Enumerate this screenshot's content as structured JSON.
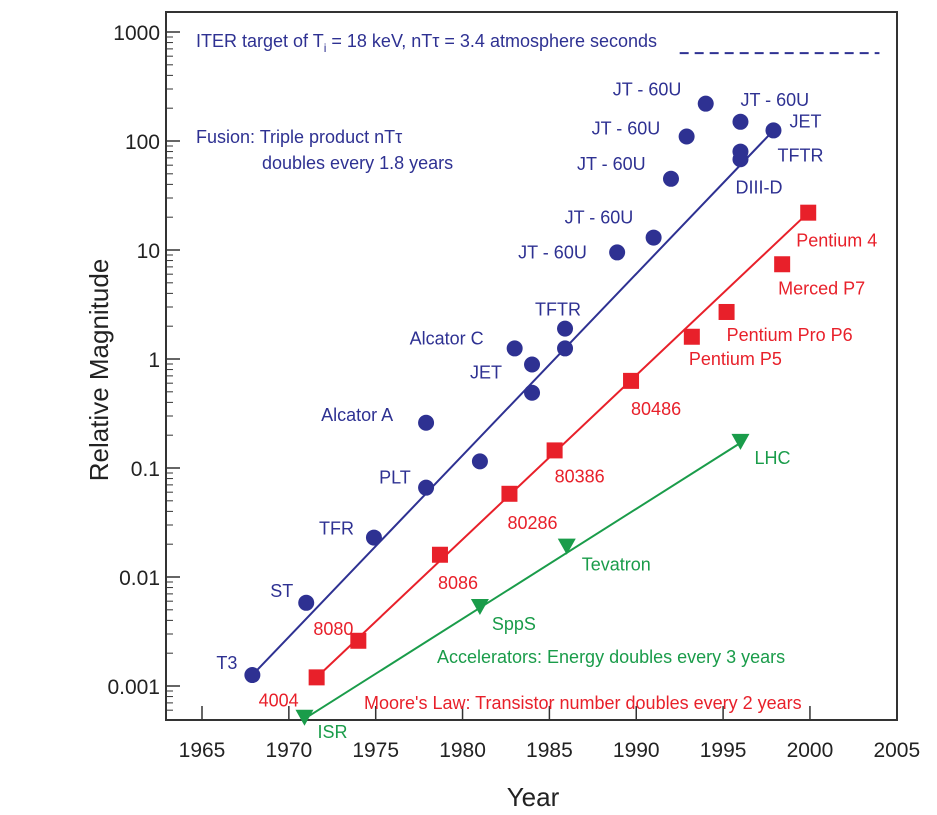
{
  "chart_data": {
    "type": "scatter",
    "title": "",
    "xlabel": "Year",
    "ylabel": "Relative Magnitude",
    "xlim": [
      1962.5,
      2005
    ],
    "ylim": [
      0.0005,
      1500
    ],
    "yscale": "log",
    "x_ticks": [
      "1965",
      "1970",
      "1975",
      "1980",
      "1985",
      "1990",
      "1995",
      "2000",
      "2005"
    ],
    "y_ticks": [
      {
        "v": 1000,
        "label": "1000"
      },
      {
        "v": 100,
        "label": "100"
      },
      {
        "v": 10,
        "label": "10"
      },
      {
        "v": 1,
        "label": "1"
      },
      {
        "v": 0.1,
        "label": "0.1"
      },
      {
        "v": 0.01,
        "label": "0.01"
      },
      {
        "v": 0.001,
        "label": "0.001"
      }
    ],
    "colors": {
      "fusion": "#2e3192",
      "moore": "#e8202a",
      "accel": "#1a9c4a",
      "axis": "#333333"
    },
    "annotations": {
      "iter": "ITER target of T",
      "iter_sub": "i",
      "iter_rest": " = 18 keV, nTτ = 3.4 atmosphere seconds",
      "iter_level": 640,
      "iter_years": [
        1992.5,
        2004
      ],
      "fusion1": "Fusion: Triple product nTτ",
      "fusion2": "doubles every 1.8 years",
      "accel": "Accelerators: Energy doubles every 3 years",
      "moore": "Moore's Law: Transistor number doubles every 2 years"
    },
    "series": [
      {
        "name": "Fusion",
        "marker": "circle",
        "fit": [
          [
            1967.9,
            0.00126
          ],
          [
            1997.9,
            125
          ]
        ],
        "points": [
          {
            "x": 1967.9,
            "y": 0.00126,
            "label": "T3"
          },
          {
            "x": 1971.0,
            "y": 0.0058,
            "label": "ST"
          },
          {
            "x": 1974.9,
            "y": 0.023,
            "label": "TFR"
          },
          {
            "x": 1977.9,
            "y": 0.066,
            "label": "PLT"
          },
          {
            "x": 1977.9,
            "y": 0.26,
            "label": "Alcator A"
          },
          {
            "x": 1981.0,
            "y": 0.115,
            "label": ""
          },
          {
            "x": 1983.0,
            "y": 1.25,
            "label": "Alcator C"
          },
          {
            "x": 1984.0,
            "y": 0.89,
            "label": "JET"
          },
          {
            "x": 1984.0,
            "y": 0.49,
            "label": ""
          },
          {
            "x": 1985.9,
            "y": 1.9,
            "label": "TFTR"
          },
          {
            "x": 1985.9,
            "y": 1.25,
            "label": ""
          },
          {
            "x": 1988.9,
            "y": 9.5,
            "label": "JT - 60U"
          },
          {
            "x": 1991.0,
            "y": 13,
            "label": "JT - 60U"
          },
          {
            "x": 1992.0,
            "y": 45,
            "label": "JT - 60U"
          },
          {
            "x": 1992.9,
            "y": 110,
            "label": "JT - 60U"
          },
          {
            "x": 1994.0,
            "y": 220,
            "label": "JT - 60U"
          },
          {
            "x": 1996.0,
            "y": 150,
            "label": "JT - 60U"
          },
          {
            "x": 1996.0,
            "y": 80,
            "label": "TFTR"
          },
          {
            "x": 1996.0,
            "y": 68,
            "label": "DIII-D"
          },
          {
            "x": 1997.9,
            "y": 125,
            "label": "JET"
          }
        ]
      },
      {
        "name": "Moore's Law",
        "marker": "square",
        "fit": [
          [
            1971.6,
            0.0012
          ],
          [
            1999.9,
            22
          ]
        ],
        "points": [
          {
            "x": 1971.6,
            "y": 0.0012,
            "label": "4004"
          },
          {
            "x": 1974.0,
            "y": 0.0026,
            "label": "8080"
          },
          {
            "x": 1978.7,
            "y": 0.016,
            "label": "8086"
          },
          {
            "x": 1982.7,
            "y": 0.058,
            "label": "80286"
          },
          {
            "x": 1985.3,
            "y": 0.145,
            "label": "80386"
          },
          {
            "x": 1989.7,
            "y": 0.63,
            "label": "80486"
          },
          {
            "x": 1993.2,
            "y": 1.6,
            "label": "Pentium P5"
          },
          {
            "x": 1995.2,
            "y": 2.7,
            "label": "Pentium Pro P6"
          },
          {
            "x": 1998.4,
            "y": 7.4,
            "label": "Merced P7"
          },
          {
            "x": 1999.9,
            "y": 22,
            "label": "Pentium 4"
          }
        ]
      },
      {
        "name": "Accelerators",
        "marker": "triangle-down",
        "fit": [
          [
            1970.9,
            0.0005
          ],
          [
            1996.0,
            0.17
          ]
        ],
        "points": [
          {
            "x": 1970.9,
            "y": 0.0005,
            "label": "ISR"
          },
          {
            "x": 1981.0,
            "y": 0.0052,
            "label": "SppS"
          },
          {
            "x": 1986.0,
            "y": 0.0186,
            "label": "Tevatron"
          },
          {
            "x": 1996.0,
            "y": 0.17,
            "label": "LHC"
          }
        ]
      }
    ]
  }
}
